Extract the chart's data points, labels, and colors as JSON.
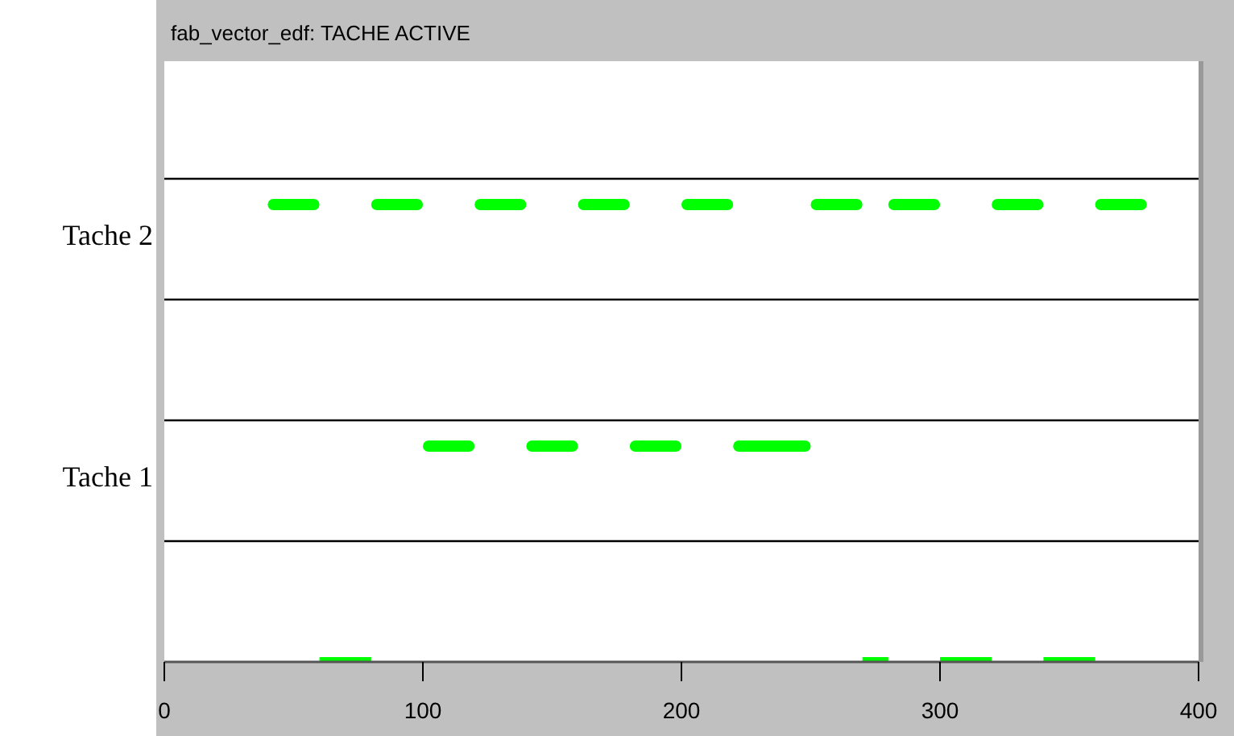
{
  "chart_data": {
    "type": "bar",
    "orientation": "horizontal",
    "title": "fab_vector_edf: TACHE ACTIVE",
    "categories": [
      "Tache 2",
      "Tache 1",
      null
    ],
    "color": "#00ff00",
    "grid": "y",
    "xlim": [
      0,
      400
    ],
    "xticks": [
      0,
      100,
      200,
      300,
      400
    ],
    "series": [
      {
        "values": [
          20,
          20,
          20
        ],
        "base": [
          40,
          100,
          60
        ]
      },
      {
        "values": [
          20,
          20,
          10
        ],
        "base": [
          80,
          140,
          270
        ]
      },
      {
        "values": [
          20,
          20,
          20
        ],
        "base": [
          120,
          180,
          300
        ]
      },
      {
        "values": [
          20,
          30,
          20
        ],
        "base": [
          160,
          220,
          340
        ]
      },
      {
        "values": [
          20,
          null,
          null
        ],
        "base": [
          200,
          null,
          null
        ]
      },
      {
        "values": [
          20,
          null,
          null
        ],
        "base": [
          250,
          null,
          null
        ]
      },
      {
        "values": [
          20,
          null,
          null
        ],
        "base": [
          280,
          null,
          null
        ]
      },
      {
        "values": [
          20,
          null,
          null
        ],
        "base": [
          320,
          null,
          null
        ]
      },
      {
        "values": [
          20,
          null,
          null
        ],
        "base": [
          360,
          null,
          null
        ]
      }
    ]
  }
}
